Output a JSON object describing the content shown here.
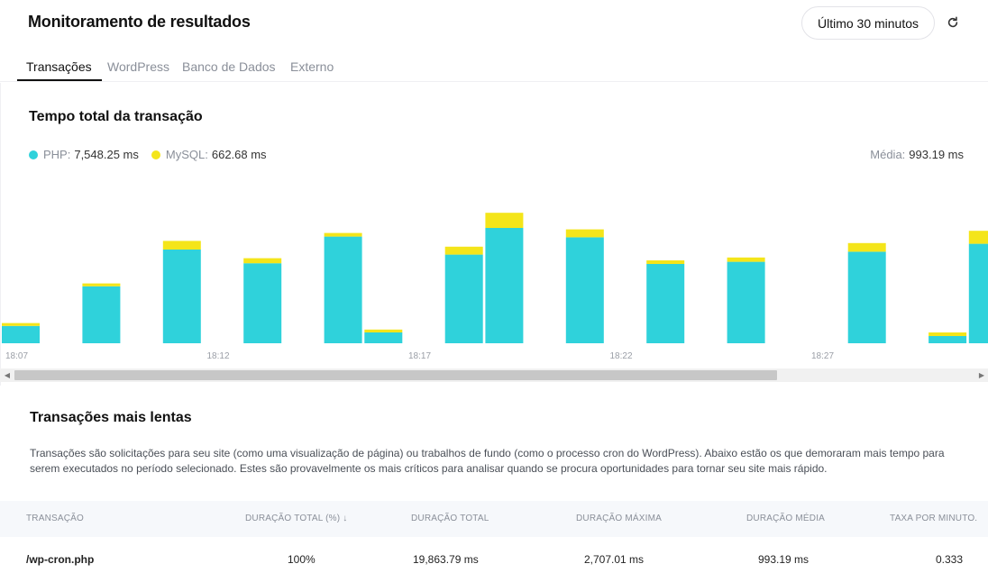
{
  "header": {
    "title": "Monitoramento de resultados",
    "time_range_label": "Último 30 minutos",
    "refresh_icon": "refresh-icon"
  },
  "tabs": [
    {
      "label": "Transações",
      "active": true
    },
    {
      "label": "WordPress",
      "active": false
    },
    {
      "label": "Banco de Dados",
      "active": false
    },
    {
      "label": "Externo",
      "active": false
    }
  ],
  "chart_section": {
    "title": "Tempo total da transação",
    "legend": {
      "php_label": "PHP:",
      "php_value": "7,548.25 ms",
      "mysql_label": "MySQL:",
      "mysql_value": "662.68 ms"
    },
    "average_label": "Média:",
    "average_value": "993.19 ms"
  },
  "colors": {
    "php": "#2fd2db",
    "mysql": "#f4e51a"
  },
  "chart_data": {
    "type": "bar",
    "stacked": true,
    "title": "Tempo total da transação",
    "x_tick_labels": [
      "18:07",
      "18:12",
      "18:17",
      "18:22",
      "18:27"
    ],
    "first_bar_index_per_tick": [
      0,
      5,
      10,
      15,
      20
    ],
    "ylim": [
      0,
      1000
    ],
    "series": [
      {
        "name": "PHP",
        "values": [
          120,
          0,
          395,
          0,
          650,
          0,
          555,
          0,
          740,
          75,
          0,
          615,
          800,
          0,
          735,
          0,
          550,
          0,
          565,
          0,
          0,
          635,
          0,
          50,
          690
        ]
      },
      {
        "name": "MySQL",
        "values": [
          20,
          0,
          20,
          0,
          60,
          0,
          35,
          0,
          25,
          20,
          0,
          55,
          105,
          0,
          55,
          0,
          25,
          0,
          30,
          0,
          0,
          60,
          0,
          25,
          90
        ]
      }
    ]
  },
  "slowest": {
    "title": "Transações mais lentas",
    "description": "Transações são solicitações para seu site (como uma visualização de página) ou trabalhos de fundo (como o processo cron do WordPress). Abaixo estão os que demoraram mais tempo para serem executados no período selecionado. Estes são provavelmente os mais críticos para analisar quando se procura oportunidades para tornar seu site mais rápido.",
    "columns": [
      "TRANSAÇÃO",
      "DURAÇÃO TOTAL (%) ↓",
      "DURAÇÃO TOTAL",
      "DURAÇÃO MÁXIMA",
      "DURAÇÃO MÉDIA",
      "TAXA POR MINUTO."
    ],
    "rows": [
      [
        "/wp-cron.php",
        "100%",
        "19,863.79 ms",
        "2,707.01 ms",
        "993.19 ms",
        "0.333"
      ]
    ]
  }
}
